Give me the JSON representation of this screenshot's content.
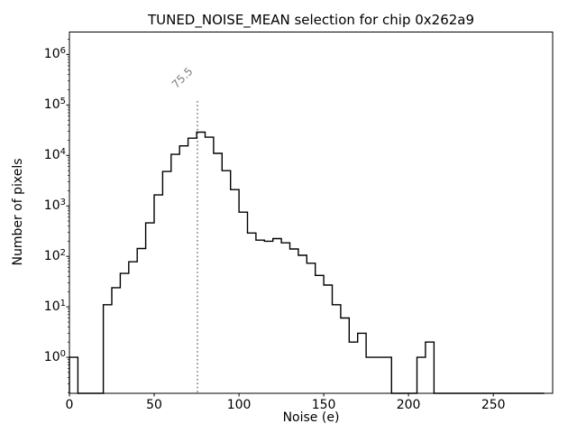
{
  "figure": {
    "background": "#ffffff"
  },
  "chart_data": {
    "type": "histogram",
    "style": "step-outline",
    "title": "TUNED_NOISE_MEAN selection for chip 0x262a9",
    "xlabel": "Noise (e)",
    "ylabel": "Number of pixels",
    "x_scale": "linear",
    "y_scale": "log",
    "xlim": [
      0,
      285
    ],
    "ylim_log10": [
      -0.714,
      6.446
    ],
    "x_ticks": [
      0,
      50,
      100,
      150,
      200,
      250
    ],
    "y_tick_base": "10",
    "y_tick_exponents": [
      0,
      1,
      2,
      3,
      4,
      5,
      6
    ],
    "bin_start": 0,
    "bin_width": 5,
    "counts": [
      1,
      0,
      0,
      0,
      11,
      24,
      46,
      78,
      143,
      460,
      1650,
      4800,
      10500,
      15500,
      22000,
      29000,
      23000,
      11000,
      5000,
      2100,
      750,
      290,
      210,
      200,
      225,
      185,
      140,
      105,
      73,
      42,
      27,
      11,
      6,
      2,
      3,
      1,
      1,
      1,
      0,
      0,
      0,
      1,
      2,
      0,
      0,
      0,
      0,
      0,
      0,
      0,
      0,
      0,
      0,
      0,
      0,
      0
    ],
    "line_color": "#000000",
    "vline": {
      "x": 75.5,
      "label": "75.5",
      "color": "#808080",
      "style": "dotted"
    },
    "grid": false,
    "legend": "none"
  }
}
